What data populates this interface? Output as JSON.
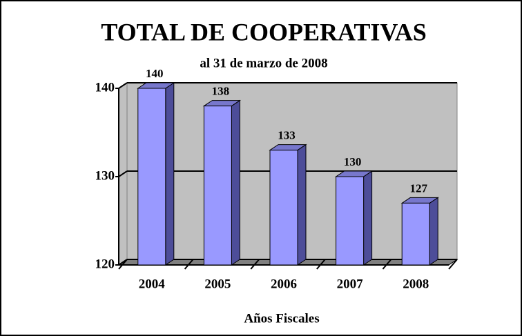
{
  "chart_data": {
    "type": "bar3d",
    "title": "TOTAL DE COOPERATIVAS",
    "subtitle": "al 31 de marzo de 2008",
    "x_label": "Años Fiscales",
    "categories": [
      "2004",
      "2005",
      "2006",
      "2007",
      "2008"
    ],
    "values": [
      140,
      138,
      133,
      130,
      127
    ],
    "color": "#9999ff",
    "ylim": [
      120,
      140
    ],
    "yticks": [
      120,
      130,
      140
    ],
    "grid": true
  }
}
